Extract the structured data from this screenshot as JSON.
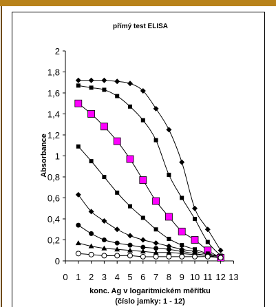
{
  "chart_data": {
    "type": "line",
    "title": "přímý test ELISA",
    "ylabel": "Absorbance",
    "xlabel": "konc. Ag v logaritmickém měřítku",
    "xlabel2": "(číslo jamky: 1 - 12)",
    "xlim": [
      0,
      13
    ],
    "ylim": [
      0,
      2
    ],
    "xticks": [
      "0",
      "1",
      "2",
      "3",
      "4",
      "5",
      "6",
      "7",
      "8",
      "9",
      "10",
      "11",
      "12",
      "13"
    ],
    "yticks": [
      "0",
      "0,2",
      "0,4",
      "0,6",
      "0,8",
      "1",
      "1,2",
      "1,4",
      "1,6",
      "1,8",
      "2"
    ],
    "grid": false,
    "legend": "none",
    "series": [
      {
        "marker": "diamond",
        "color": "#000000",
        "x": [
          1,
          2,
          3,
          4,
          5,
          6,
          7,
          8,
          9,
          10,
          11,
          12
        ],
        "y": [
          1.72,
          1.72,
          1.72,
          1.71,
          1.69,
          1.62,
          1.45,
          1.25,
          0.94,
          0.5,
          0.3,
          0.1
        ]
      },
      {
        "marker": "square",
        "color": "#000000",
        "x": [
          1,
          2,
          3,
          4,
          5,
          6,
          7,
          8,
          9,
          10,
          11,
          12
        ],
        "y": [
          1.67,
          1.65,
          1.63,
          1.57,
          1.47,
          1.34,
          1.15,
          0.82,
          0.6,
          0.4,
          0.18,
          0.05
        ]
      },
      {
        "marker": "square",
        "color": "#ff00ff",
        "size": "large",
        "x": [
          1,
          2,
          3,
          4,
          5,
          6,
          7,
          8,
          9,
          10,
          11,
          12
        ],
        "y": [
          1.5,
          1.4,
          1.28,
          1.14,
          0.97,
          0.77,
          0.57,
          0.42,
          0.28,
          0.2,
          0.1,
          0.03
        ]
      },
      {
        "marker": "square",
        "color": "#000000",
        "x": [
          1,
          2,
          3,
          4,
          5,
          6,
          7,
          8,
          9,
          10,
          11,
          12
        ],
        "y": [
          1.09,
          0.95,
          0.8,
          0.65,
          0.52,
          0.41,
          0.3,
          0.21,
          0.15,
          0.11,
          0.07,
          0.04
        ]
      },
      {
        "marker": "diamond",
        "color": "#000000",
        "x": [
          1,
          2,
          3,
          4,
          5,
          6,
          7,
          8,
          9,
          10,
          11,
          12
        ],
        "y": [
          0.63,
          0.47,
          0.38,
          0.3,
          0.24,
          0.2,
          0.17,
          0.14,
          0.11,
          0.09,
          0.06,
          0.04
        ]
      },
      {
        "marker": "circle",
        "color": "#000000",
        "x": [
          1,
          2,
          3,
          4,
          5,
          6,
          7,
          8,
          9,
          10,
          11,
          12
        ],
        "y": [
          0.34,
          0.26,
          0.2,
          0.17,
          0.15,
          0.13,
          0.12,
          0.11,
          0.09,
          0.07,
          0.05,
          0.03
        ]
      },
      {
        "marker": "triangle",
        "color": "#000000",
        "x": [
          1,
          2,
          3,
          4,
          5,
          6,
          7,
          8,
          9,
          10,
          11,
          12
        ],
        "y": [
          0.17,
          0.14,
          0.12,
          0.11,
          0.1,
          0.09,
          0.08,
          0.08,
          0.07,
          0.06,
          0.05,
          0.03
        ]
      },
      {
        "marker": "circle-open",
        "color": "#000000",
        "x": [
          1,
          2,
          3,
          4,
          5,
          6,
          7,
          8,
          9,
          10,
          11,
          12
        ],
        "y": [
          0.07,
          0.06,
          0.05,
          0.05,
          0.05,
          0.04,
          0.04,
          0.04,
          0.04,
          0.04,
          0.04,
          0.03
        ]
      }
    ]
  }
}
